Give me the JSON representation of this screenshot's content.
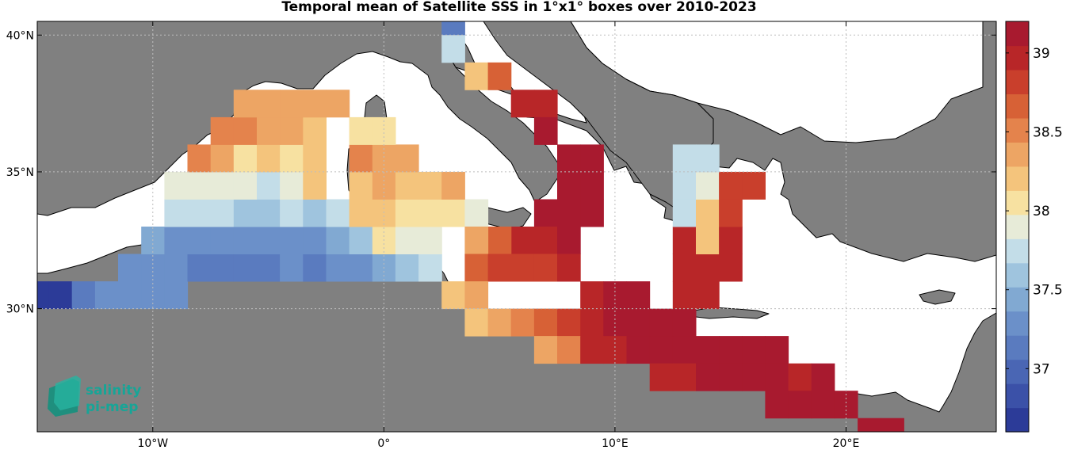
{
  "title": "Temporal mean of Satellite SSS in 1°x1° boxes over 2010-2023",
  "x_ticks": [
    {
      "deg": -10,
      "label": "10°W"
    },
    {
      "deg": 0,
      "label": "0°"
    },
    {
      "deg": 10,
      "label": "10°E"
    },
    {
      "deg": 20,
      "label": "20°E"
    }
  ],
  "y_ticks": [
    {
      "deg": 40,
      "label": "40°N"
    },
    {
      "deg": 35,
      "label": "35°N"
    },
    {
      "deg": 30,
      "label": "30°N"
    }
  ],
  "colorbar": {
    "min": 36.6,
    "max": 39.2,
    "ticks": [
      {
        "v": 37,
        "label": "37"
      },
      {
        "v": 37.5,
        "label": "37.5"
      },
      {
        "v": 38,
        "label": "38"
      },
      {
        "v": 38.5,
        "label": "38.5"
      },
      {
        "v": 39,
        "label": "39"
      }
    ],
    "colors": [
      "#2c3b98",
      "#3b51a8",
      "#4a66b4",
      "#5a7bbf",
      "#6b90c9",
      "#81a9d2",
      "#9fc4de",
      "#c3dde8",
      "#e7ebd8",
      "#f7e1a1",
      "#f4c47c",
      "#eda564",
      "#e4834c",
      "#d76136",
      "#c93f2c",
      "#b82628",
      "#a81a2f"
    ]
  },
  "logo": {
    "line1": "salinity",
    "line2": "pi-mep"
  },
  "chart_data": {
    "type": "heatmap",
    "title": "Temporal mean of Satellite SSS in 1°x1° boxes over 2010-2023",
    "xlim": [
      -15,
      26.5
    ],
    "ylim": [
      25.5,
      40.5
    ],
    "cell_size_deg": 1,
    "cells": [
      [
        -15,
        30.5,
        36.6
      ],
      [
        -14,
        30.5,
        36.6
      ],
      [
        -13,
        30.5,
        37.1
      ],
      [
        -12,
        30.5,
        37.25
      ],
      [
        -11,
        30.5,
        37.3
      ],
      [
        -10,
        30.5,
        37.3
      ],
      [
        -9,
        30.5,
        37.3
      ],
      [
        -11,
        31.5,
        37.25
      ],
      [
        -10,
        31.5,
        37.3
      ],
      [
        -9,
        31.5,
        37.25
      ],
      [
        -8,
        31.5,
        37.2
      ],
      [
        -7,
        31.5,
        37.15
      ],
      [
        -6,
        31.5,
        37.15
      ],
      [
        -5,
        31.5,
        37.2
      ],
      [
        -4,
        31.5,
        37.25
      ],
      [
        -3,
        31.5,
        37.2
      ],
      [
        -2,
        31.5,
        37.25
      ],
      [
        -1,
        31.5,
        37.3
      ],
      [
        0,
        31.5,
        37.45
      ],
      [
        1,
        31.5,
        37.6
      ],
      [
        2,
        31.5,
        37.7
      ],
      [
        -10,
        32.5,
        37.4
      ],
      [
        -9,
        32.5,
        37.3
      ],
      [
        -8,
        32.5,
        37.3
      ],
      [
        -7,
        32.5,
        37.35
      ],
      [
        -6,
        32.5,
        37.35
      ],
      [
        -5,
        32.5,
        37.3
      ],
      [
        -4,
        32.5,
        37.3
      ],
      [
        -3,
        32.5,
        37.35
      ],
      [
        -2,
        32.5,
        37.4
      ],
      [
        -1,
        32.5,
        37.55
      ],
      [
        0,
        32.5,
        38.05
      ],
      [
        1,
        32.5,
        37.9
      ],
      [
        2,
        32.5,
        37.9
      ],
      [
        -9,
        33.5,
        37.75
      ],
      [
        -8,
        33.5,
        37.7
      ],
      [
        -7,
        33.5,
        37.7
      ],
      [
        -6,
        33.5,
        37.6
      ],
      [
        -5,
        33.5,
        37.55
      ],
      [
        -4,
        33.5,
        37.8
      ],
      [
        -3,
        33.5,
        37.65
      ],
      [
        -2,
        33.5,
        37.7
      ],
      [
        -1,
        33.5,
        38.15
      ],
      [
        0,
        33.5,
        38.15
      ],
      [
        1,
        33.5,
        38.1
      ],
      [
        2,
        33.5,
        38.1
      ],
      [
        3,
        33.5,
        38.1
      ],
      [
        4,
        33.5,
        37.95
      ],
      [
        -9,
        34.5,
        37.85
      ],
      [
        -8,
        34.5,
        37.95
      ],
      [
        -7,
        34.5,
        37.95
      ],
      [
        -6,
        34.5,
        37.95
      ],
      [
        -5,
        34.5,
        37.8
      ],
      [
        -4,
        34.5,
        37.95
      ],
      [
        -3,
        34.5,
        38.2
      ],
      [
        -1,
        34.5,
        38.25
      ],
      [
        0,
        34.5,
        38.3
      ],
      [
        1,
        34.5,
        38.2
      ],
      [
        2,
        34.5,
        38.15
      ],
      [
        3,
        34.5,
        38.3
      ],
      [
        -8,
        35.5,
        38.55
      ],
      [
        -7,
        35.5,
        38.35
      ],
      [
        -6,
        35.5,
        38.1
      ],
      [
        -5,
        35.5,
        38.2
      ],
      [
        -4,
        35.5,
        38.1
      ],
      [
        -3,
        35.5,
        38.25
      ],
      [
        -1,
        35.5,
        38.55
      ],
      [
        0,
        35.5,
        38.3
      ],
      [
        1,
        35.5,
        38.3
      ],
      [
        -7,
        36.5,
        38.45
      ],
      [
        -6,
        36.5,
        38.45
      ],
      [
        -5,
        36.5,
        38.3
      ],
      [
        -4,
        36.5,
        38.3
      ],
      [
        -3,
        36.5,
        38.25
      ],
      [
        -1,
        36.5,
        38.0
      ],
      [
        0,
        36.5,
        38.05
      ],
      [
        -6,
        37.5,
        38.3
      ],
      [
        -5,
        37.5,
        38.3
      ],
      [
        -4,
        37.5,
        38.3
      ],
      [
        -3,
        37.5,
        38.35
      ],
      [
        -2,
        37.5,
        38.3
      ],
      [
        3,
        40.5,
        37.2
      ],
      [
        3,
        39.5,
        37.7
      ],
      [
        4,
        38.5,
        38.2
      ],
      [
        5,
        38.5,
        38.65
      ],
      [
        6,
        37.5,
        39.0
      ],
      [
        7,
        37.5,
        39.0
      ],
      [
        7,
        36.5,
        39.05
      ],
      [
        8,
        35.5,
        39.1
      ],
      [
        9,
        35.5,
        39.1
      ],
      [
        8,
        34.5,
        39.05
      ],
      [
        9,
        34.5,
        39.05
      ],
      [
        7,
        33.5,
        39.1
      ],
      [
        8,
        33.5,
        39.1
      ],
      [
        9,
        33.5,
        39.1
      ],
      [
        7,
        32.5,
        39.0
      ],
      [
        8,
        32.5,
        39.05
      ],
      [
        6,
        32.5,
        38.9
      ],
      [
        5,
        32.5,
        38.7
      ],
      [
        4,
        32.5,
        38.35
      ],
      [
        4,
        31.5,
        38.6
      ],
      [
        5,
        31.5,
        38.75
      ],
      [
        6,
        31.5,
        38.8
      ],
      [
        7,
        31.5,
        38.85
      ],
      [
        8,
        31.5,
        38.9
      ],
      [
        3,
        30.5,
        38.15
      ],
      [
        4,
        30.5,
        38.3
      ],
      [
        4,
        29.5,
        38.2
      ],
      [
        5,
        29.5,
        38.3
      ],
      [
        6,
        29.5,
        38.45
      ],
      [
        7,
        29.5,
        38.6
      ],
      [
        8,
        29.5,
        38.8
      ],
      [
        9,
        30.5,
        38.95
      ],
      [
        10,
        30.5,
        39.05
      ],
      [
        11,
        30.5,
        39.05
      ],
      [
        9,
        29.5,
        39.0
      ],
      [
        10,
        29.5,
        39.05
      ],
      [
        11,
        29.5,
        39.1
      ],
      [
        12,
        29.5,
        39.1
      ],
      [
        13,
        29.5,
        39.05
      ],
      [
        7,
        28.5,
        38.3
      ],
      [
        8,
        28.5,
        38.5
      ],
      [
        9,
        28.5,
        38.9
      ],
      [
        10,
        28.5,
        38.95
      ],
      [
        11,
        28.5,
        39.05
      ],
      [
        12,
        28.5,
        39.05
      ],
      [
        13,
        28.5,
        39.05
      ],
      [
        14,
        28.5,
        39.05
      ],
      [
        15,
        28.5,
        39.05
      ],
      [
        16,
        28.5,
        39.05
      ],
      [
        17,
        28.5,
        39.05
      ],
      [
        12,
        27.5,
        38.95
      ],
      [
        13,
        27.5,
        38.95
      ],
      [
        14,
        27.5,
        39.05
      ],
      [
        15,
        27.5,
        39.05
      ],
      [
        16,
        27.5,
        39.05
      ],
      [
        17,
        27.5,
        39.05
      ],
      [
        18,
        27.5,
        39.0
      ],
      [
        19,
        27.5,
        39.05
      ],
      [
        17,
        26.5,
        39.05
      ],
      [
        18,
        26.5,
        39.05
      ],
      [
        19,
        26.5,
        39.05
      ],
      [
        20,
        26.5,
        39.05
      ],
      [
        21,
        25.5,
        39.05
      ],
      [
        22,
        25.5,
        39.05
      ],
      [
        13,
        30.5,
        39.0
      ],
      [
        14,
        30.5,
        38.95
      ],
      [
        14,
        31.5,
        39.0
      ],
      [
        13,
        31.5,
        39.0
      ],
      [
        15,
        31.5,
        38.9
      ],
      [
        13,
        32.5,
        38.95
      ],
      [
        14,
        32.5,
        38.2
      ],
      [
        15,
        32.5,
        38.95
      ],
      [
        13,
        33.5,
        37.8
      ],
      [
        14,
        33.5,
        38.2
      ],
      [
        15,
        33.5,
        38.85
      ],
      [
        13,
        34.5,
        37.8
      ],
      [
        14,
        34.5,
        37.85
      ],
      [
        15,
        34.5,
        38.8
      ],
      [
        16,
        34.5,
        38.85
      ],
      [
        13,
        35.5,
        37.75
      ],
      [
        14,
        35.5,
        37.75
      ]
    ]
  }
}
